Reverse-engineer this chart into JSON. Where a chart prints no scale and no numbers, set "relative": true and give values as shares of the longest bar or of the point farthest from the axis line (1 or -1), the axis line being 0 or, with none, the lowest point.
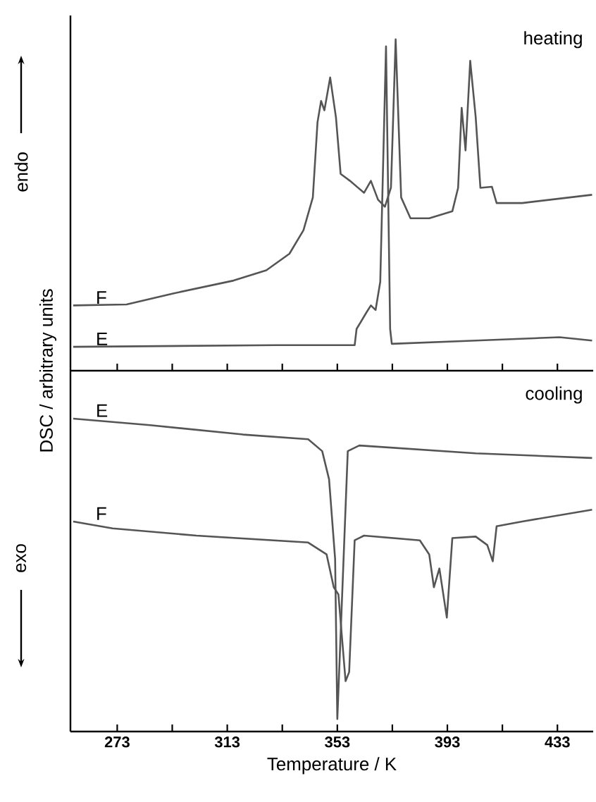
{
  "chart_data": [
    {
      "type": "line",
      "relative": true,
      "ylabel": "DSC / arbitrary units",
      "annotations": [
        "heating",
        "endo"
      ],
      "tick_labels": false,
      "xlim": [
        256,
        446
      ],
      "xticks": [
        273,
        {
          "value": 293,
          "label": null
        },
        313,
        {
          "value": 333,
          "label": null
        },
        353,
        {
          "value": 373,
          "label": null
        },
        393,
        {
          "value": 413,
          "label": null
        },
        433
      ],
      "series": [
        {
          "name": "F",
          "color": "#555555",
          "x": [
            257,
            276.4,
            293.3,
            315.3,
            327.2,
            335.6,
            340.7,
            344.1,
            345.8,
            347.1,
            348.3,
            350.4,
            352.5,
            354.2,
            357.6,
            362.7,
            365.2,
            367.8,
            370.3,
            372.5,
            374.2,
            376.2,
            379.6,
            386.4,
            394.8,
            396.9,
            398.2,
            399.6,
            401.3,
            403.3,
            405,
            409.2,
            410.9,
            420.2,
            445.6
          ],
          "values": [
            0.197,
            0.2,
            0.233,
            0.272,
            0.303,
            0.353,
            0.424,
            0.523,
            0.75,
            0.814,
            0.786,
            0.885,
            0.765,
            0.594,
            0.573,
            0.537,
            0.573,
            0.516,
            0.495,
            0.553,
            1.0,
            0.523,
            0.46,
            0.46,
            0.481,
            0.552,
            0.793,
            0.665,
            0.935,
            0.765,
            0.552,
            0.555,
            0.506,
            0.506,
            0.531
          ]
        },
        {
          "name": "E",
          "color": "#555555",
          "x": [
            257,
            330.6,
            359.3,
            360,
            363.6,
            365.2,
            366.9,
            368.6,
            370.7,
            372.2,
            372.8,
            403.3,
            433.8,
            445.6
          ],
          "values": [
            0.072,
            0.077,
            0.077,
            0.126,
            0.176,
            0.197,
            0.183,
            0.268,
            0.979,
            0.126,
            0.081,
            0.091,
            0.101,
            0.091
          ]
        }
      ]
    },
    {
      "type": "line",
      "relative": true,
      "xlabel": "Temperature / K",
      "annotations": [
        "cooling",
        "exo"
      ],
      "tick_labels": "x",
      "xlim": [
        256,
        446
      ],
      "xticks": [
        273,
        {
          "value": 293,
          "label": null
        },
        313,
        {
          "value": 333,
          "label": null
        },
        353,
        {
          "value": 373,
          "label": null
        },
        393,
        {
          "value": 413,
          "label": null
        },
        433
      ],
      "series": [
        {
          "name": "E",
          "color": "#555555",
          "x": [
            257,
            284.9,
            318.7,
            342.4,
            347.5,
            350,
            352.2,
            353,
            356.8,
            361,
            403.3,
            445.6
          ],
          "values": [
            1.0,
            0.979,
            0.949,
            0.934,
            0.896,
            0.806,
            0.551,
            0.04,
            0.896,
            0.914,
            0.889,
            0.874
          ]
        },
        {
          "name": "F",
          "color": "#555555",
          "x": [
            257,
            271.3,
            301.8,
            342.4,
            349.1,
            351.7,
            353.4,
            356,
            357.3,
            359.3,
            362.7,
            383,
            386.4,
            388.1,
            390.1,
            392.8,
            394.8,
            403.3,
            407.5,
            409.5,
            410.9,
            420.2,
            445.6
          ],
          "values": [
            0.671,
            0.649,
            0.626,
            0.604,
            0.566,
            0.461,
            0.438,
            0.161,
            0.19,
            0.611,
            0.626,
            0.611,
            0.566,
            0.461,
            0.521,
            0.364,
            0.618,
            0.623,
            0.596,
            0.544,
            0.656,
            0.671,
            0.709
          ]
        }
      ]
    }
  ]
}
